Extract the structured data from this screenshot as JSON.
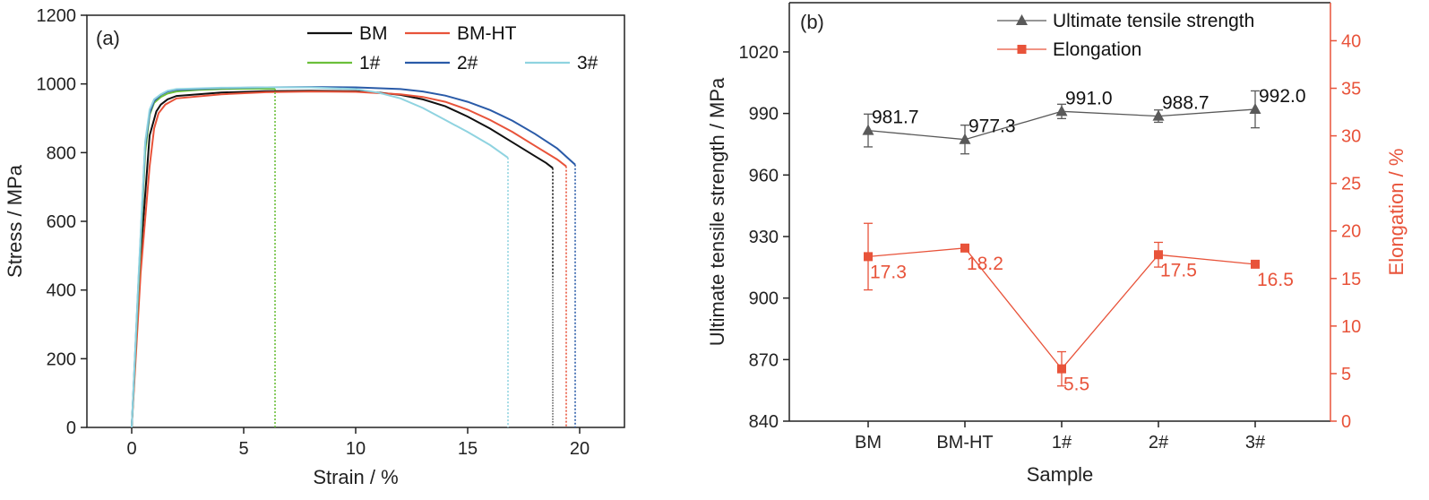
{
  "colors": {
    "BM": "#111111",
    "BM-HT": "#e8533a",
    "1#": "#6bbf3a",
    "2#": "#2a5ba8",
    "3#": "#8fd3e0",
    "uts": "#595959",
    "elongation": "#e8533a",
    "axis": "#222222",
    "right_axis": "#e8533a"
  },
  "chart_data": [
    {
      "type": "line",
      "panel_label": "(a)",
      "xlabel": "Strain / %",
      "ylabel": "Stress / MPa",
      "xlim": [
        -2,
        22
      ],
      "ylim": [
        0,
        1200
      ],
      "xticks": [
        "0",
        "5",
        "10",
        "15",
        "20"
      ],
      "yticks": [
        "0",
        "200",
        "400",
        "600",
        "800",
        "1000",
        "1200"
      ],
      "legend_position": "top-right",
      "series": [
        {
          "name": "BM",
          "x": [
            0,
            0.4,
            0.8,
            1.1,
            1.3,
            1.6,
            2,
            4,
            6,
            8,
            10,
            11,
            12,
            13,
            14,
            15,
            16,
            17,
            18,
            18.5,
            18.8
          ],
          "y": [
            0,
            500,
            850,
            920,
            940,
            955,
            965,
            975,
            979,
            980,
            979,
            975,
            968,
            955,
            935,
            905,
            870,
            830,
            790,
            770,
            755
          ],
          "fracture_strain": 18.8,
          "fracture_drop_to": 440
        },
        {
          "name": "BM-HT",
          "x": [
            0,
            0.4,
            0.8,
            1.0,
            1.2,
            1.5,
            2,
            4,
            6,
            8,
            10,
            12,
            13,
            14,
            15,
            16,
            17,
            18,
            19,
            19.4
          ],
          "y": [
            0,
            450,
            760,
            870,
            915,
            940,
            958,
            970,
            976,
            978,
            977,
            970,
            962,
            948,
            925,
            895,
            860,
            820,
            780,
            760
          ],
          "fracture_strain": 19.4,
          "fracture_drop_to": 0
        },
        {
          "name": "1#",
          "x": [
            0,
            0.3,
            0.6,
            0.8,
            1.0,
            1.3,
            1.6,
            2,
            3,
            4,
            5,
            6,
            6.4
          ],
          "y": [
            0,
            400,
            800,
            910,
            945,
            962,
            972,
            978,
            983,
            985,
            986,
            986,
            986
          ],
          "fracture_strain": 6.4,
          "fracture_drop_to": 0
        },
        {
          "name": "2#",
          "x": [
            0,
            0.3,
            0.6,
            0.8,
            1.0,
            1.3,
            1.6,
            2,
            4,
            6,
            8,
            10,
            12,
            13,
            14,
            15,
            16,
            17,
            18,
            19,
            19.8
          ],
          "y": [
            0,
            420,
            820,
            915,
            950,
            968,
            978,
            983,
            988,
            990,
            991,
            990,
            985,
            978,
            966,
            948,
            924,
            893,
            855,
            812,
            765
          ],
          "fracture_strain": 19.8,
          "fracture_drop_to": 0
        },
        {
          "name": "3#",
          "x": [
            0,
            0.3,
            0.6,
            0.8,
            1.0,
            1.3,
            1.6,
            2,
            4,
            6,
            8,
            10,
            11,
            12,
            13,
            14,
            15,
            16,
            16.8
          ],
          "y": [
            0,
            430,
            830,
            925,
            955,
            970,
            980,
            985,
            989,
            990,
            990,
            985,
            975,
            958,
            930,
            895,
            860,
            822,
            785
          ],
          "fracture_strain": 16.8,
          "fracture_drop_to": 0
        }
      ]
    },
    {
      "type": "line",
      "panel_label": "(b)",
      "xlabel": "Sample",
      "ylabel": "Ultimate tensile strength / MPa",
      "y2label": "Elongation / %",
      "categories": [
        "BM",
        "BM-HT",
        "1#",
        "2#",
        "3#"
      ],
      "ylim": [
        840,
        1044
      ],
      "y2lim": [
        0,
        44
      ],
      "yticks": [
        "840",
        "870",
        "900",
        "930",
        "960",
        "990",
        "1020"
      ],
      "y2ticks": [
        "0",
        "5",
        "10",
        "15",
        "20",
        "25",
        "30",
        "35",
        "40"
      ],
      "legend_position": "top-center",
      "series": [
        {
          "name": "Ultimate tensile strength",
          "axis": "left",
          "marker": "triangle",
          "values": [
            981.7,
            977.3,
            991.0,
            988.7,
            992.0
          ],
          "error": [
            8.0,
            7.0,
            3.5,
            3.0,
            9.0
          ],
          "labels": [
            "981.7",
            "977.3",
            "991.0",
            "988.7",
            "992.0"
          ]
        },
        {
          "name": "Elongation",
          "axis": "right",
          "marker": "square",
          "values": [
            17.3,
            18.2,
            5.5,
            17.5,
            16.5
          ],
          "error": [
            3.5,
            0.3,
            1.8,
            1.3,
            0.3
          ],
          "labels": [
            "17.3",
            "18.2",
            "5.5",
            "17.5",
            "16.5"
          ]
        }
      ]
    }
  ]
}
